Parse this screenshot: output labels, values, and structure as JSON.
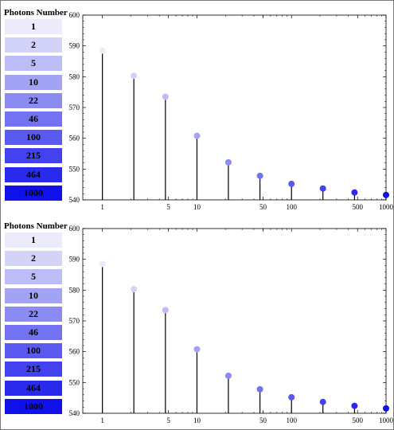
{
  "legend": {
    "title": "Photons Number",
    "items": [
      "1",
      "2",
      "5",
      "10",
      "22",
      "46",
      "100",
      "215",
      "464",
      "1000"
    ],
    "colors": [
      "#ebebfb",
      "#d3d3fa",
      "#bcbcf9",
      "#a3a3f6",
      "#8b8bf4",
      "#7272f2",
      "#5a5af0",
      "#4242ee",
      "#2a2aec",
      "#1010ea"
    ]
  },
  "chart_data": [
    {
      "type": "stem",
      "x": [
        1,
        2.15,
        4.64,
        10,
        21.5,
        46.4,
        100,
        215,
        464,
        1000
      ],
      "y": [
        588.5,
        580.3,
        573.5,
        560.8,
        552.2,
        547.8,
        545.2,
        543.7,
        542.4,
        541.6
      ],
      "xscale": "log",
      "xlim": [
        0.62,
        1000
      ],
      "ylim": [
        540,
        600
      ],
      "xticks": [
        1,
        5,
        10,
        50,
        100,
        500,
        1000
      ],
      "yticks": [
        540,
        550,
        560,
        570,
        580,
        590,
        600
      ],
      "grid": false
    },
    {
      "type": "stem",
      "x": [
        1,
        2.15,
        4.64,
        10,
        21.5,
        46.4,
        100,
        215,
        464,
        1000
      ],
      "y": [
        588.5,
        580.3,
        573.5,
        560.8,
        552.2,
        547.8,
        545.2,
        543.7,
        542.4,
        541.6
      ],
      "xscale": "log",
      "xlim": [
        0.62,
        1000
      ],
      "ylim": [
        540,
        600
      ],
      "xticks": [
        1,
        5,
        10,
        50,
        100,
        500,
        1000
      ],
      "yticks": [
        540,
        550,
        560,
        570,
        580,
        590,
        600
      ],
      "grid": false
    }
  ]
}
